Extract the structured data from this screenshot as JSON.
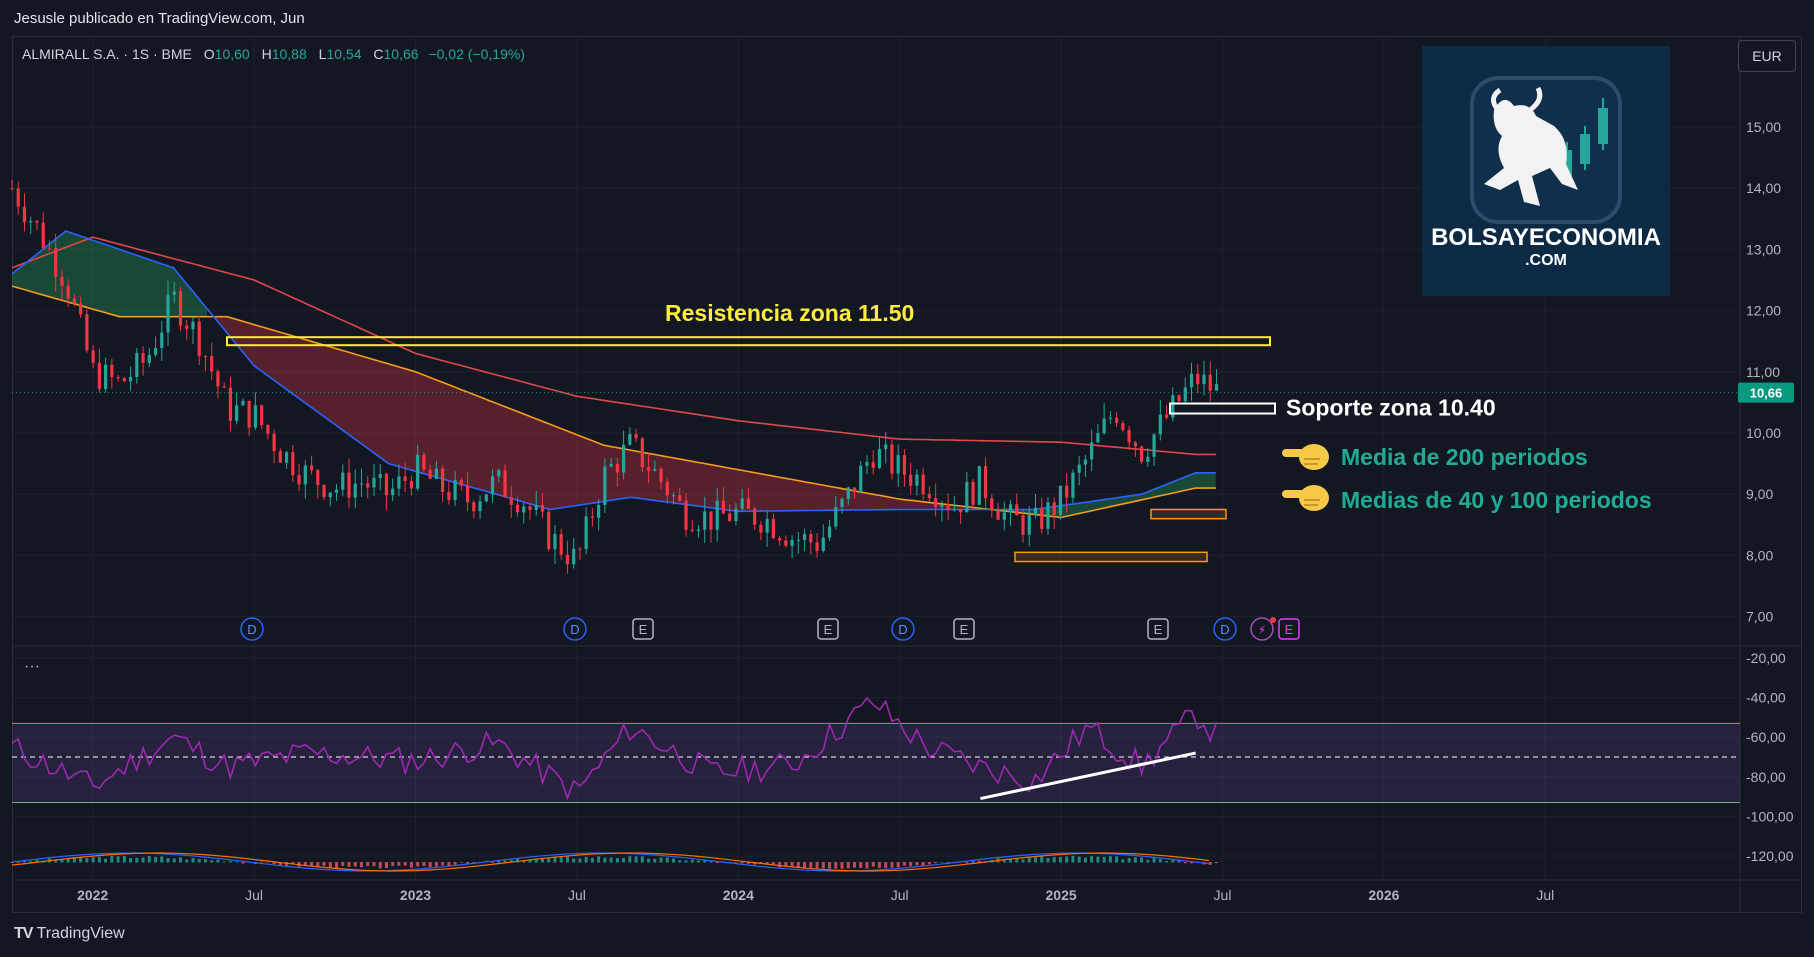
{
  "header": {
    "publisher": "Jesusle publicado en TradingView.com, Jun"
  },
  "legend": {
    "symbol": "ALMIRALL S.A. · 1S · BME",
    "open_label": "O",
    "open": "10,60",
    "high_label": "H",
    "high": "10,88",
    "low_label": "L",
    "low": "10,54",
    "close_label": "C",
    "close": "10,66",
    "change": "−0,02 (−0,19%)"
  },
  "currency": "EUR",
  "logo": {
    "name": "BOLSAYECONOMIA",
    "domain": ".COM"
  },
  "footer": {
    "brand": "TradingView"
  },
  "indicator_menu": "···",
  "annotations": {
    "resistance": "Resistencia zona 11.50",
    "support": "Soporte zona 10.40",
    "ma200": "Media de 200 periodos",
    "ma40_100": "Medias de 40 y 100 periodos",
    "pointer_icon": "pointing-hand-icon"
  },
  "colors": {
    "background": "#131722",
    "up": "#26a69a",
    "down": "#f23645",
    "ma200": "#e0474a",
    "ma40": "#2962ff",
    "ma100": "#f59d1b",
    "resistance": "#ffeb3b",
    "support": "#ffffff",
    "zones": "#ff9800",
    "rsi": "#9c27b0",
    "accent_text": "#22ab94",
    "price_badge": "#089981"
  },
  "chart_data": [
    {
      "type": "candlestick",
      "title": "ALMIRALL S.A. · 1S · BME",
      "y_unit": "EUR",
      "ylim": [
        6.5,
        16.0
      ],
      "y_ticks": [
        "15,00",
        "14,00",
        "13,00",
        "12,00",
        "11,00",
        "10,00",
        "9,00",
        "8,00",
        "7,00"
      ],
      "x_ticks": [
        "2022",
        "Jul",
        "2023",
        "Jul",
        "2024",
        "Jul",
        "2025",
        "Jul",
        "2026",
        "Jul"
      ],
      "last_price": "10,66",
      "price_path": [
        [
          "2021-10",
          14.0
        ],
        [
          "2021-11",
          13.3
        ],
        [
          "2021-12",
          12.5
        ],
        [
          "2022-01",
          11.0
        ],
        [
          "2022-02",
          10.8
        ],
        [
          "2022-03",
          11.2
        ],
        [
          "2022-04",
          12.2
        ],
        [
          "2022-05",
          11.5
        ],
        [
          "2022-06",
          10.4
        ],
        [
          "2022-07",
          10.3
        ],
        [
          "2022-08",
          9.7
        ],
        [
          "2022-09",
          9.3
        ],
        [
          "2022-10",
          9.1
        ],
        [
          "2022-11",
          9.2
        ],
        [
          "2022-12",
          9.0
        ],
        [
          "2023-01",
          9.4
        ],
        [
          "2023-02",
          9.1
        ],
        [
          "2023-03",
          8.9
        ],
        [
          "2023-04",
          9.2
        ],
        [
          "2023-05",
          8.9
        ],
        [
          "2023-06",
          8.3
        ],
        [
          "2023-07",
          7.9
        ],
        [
          "2023-08",
          9.3
        ],
        [
          "2023-09",
          9.8
        ],
        [
          "2023-10",
          9.3
        ],
        [
          "2023-11",
          8.7
        ],
        [
          "2023-12",
          8.6
        ],
        [
          "2024-01",
          8.7
        ],
        [
          "2024-02",
          8.6
        ],
        [
          "2024-03",
          8.3
        ],
        [
          "2024-04",
          8.2
        ],
        [
          "2024-05",
          8.9
        ],
        [
          "2024-06",
          9.7
        ],
        [
          "2024-07",
          9.4
        ],
        [
          "2024-08",
          9.2
        ],
        [
          "2024-09",
          8.8
        ],
        [
          "2024-10",
          9.2
        ],
        [
          "2024-11",
          8.6
        ],
        [
          "2024-12",
          8.5
        ],
        [
          "2025-01",
          8.9
        ],
        [
          "2025-02",
          9.6
        ],
        [
          "2025-03",
          10.4
        ],
        [
          "2025-04",
          9.7
        ],
        [
          "2025-05",
          10.3
        ],
        [
          "2025-06",
          10.9
        ],
        [
          "2025-06-27",
          10.66
        ]
      ],
      "overlays": [
        {
          "name": "Media de 200 periodos",
          "color": "#e0474a",
          "points": [
            [
              "2021-10",
              12.7
            ],
            [
              "2022-01",
              13.2
            ],
            [
              "2022-07",
              12.5
            ],
            [
              "2023-01",
              11.3
            ],
            [
              "2023-07",
              10.6
            ],
            [
              "2024-01",
              10.2
            ],
            [
              "2024-07",
              9.9
            ],
            [
              "2025-01",
              9.85
            ],
            [
              "2025-06",
              9.65
            ]
          ]
        },
        {
          "name": "Media de 40 periodos",
          "color": "#2962ff",
          "points": [
            [
              "2021-10",
              12.6
            ],
            [
              "2021-12",
              13.3
            ],
            [
              "2022-04",
              12.7
            ],
            [
              "2022-07",
              11.1
            ],
            [
              "2022-12",
              9.5
            ],
            [
              "2023-06",
              8.75
            ],
            [
              "2023-09",
              8.95
            ],
            [
              "2024-01",
              8.72
            ],
            [
              "2024-07",
              8.75
            ],
            [
              "2024-12",
              8.75
            ],
            [
              "2025-04",
              9.0
            ],
            [
              "2025-06",
              9.35
            ]
          ]
        },
        {
          "name": "Media de 100 periodos",
          "color": "#f59d1b",
          "points": [
            [
              "2021-10",
              12.4
            ],
            [
              "2022-02",
              11.9
            ],
            [
              "2022-06",
              11.9
            ],
            [
              "2023-01",
              11.0
            ],
            [
              "2023-08",
              9.8
            ],
            [
              "2024-01",
              9.4
            ],
            [
              "2024-07",
              8.92
            ],
            [
              "2025-01",
              8.62
            ],
            [
              "2025-06",
              9.1
            ]
          ]
        }
      ],
      "levels": [
        {
          "label": "Resistencia zona 11.50",
          "value": 11.5,
          "from": "2022-05",
          "to": "2025-06"
        },
        {
          "label": "Soporte zona 10.40",
          "value": 10.4,
          "from": "2025-03",
          "to": "2025-06"
        }
      ],
      "zones": [
        {
          "from": "2024-10",
          "to": "2025-01",
          "low": 7.9,
          "high": 8.05
        },
        {
          "from": "2025-03",
          "to": "2025-05",
          "low": 8.6,
          "high": 8.75
        }
      ],
      "events": [
        "D",
        "D",
        "E",
        "E",
        "D",
        "E",
        "E",
        "D",
        "⚡",
        "E"
      ]
    },
    {
      "type": "line",
      "title": "",
      "ylim": [
        -125,
        -15
      ],
      "y_ticks": [
        "-20,00",
        "-40,00",
        "-60,00",
        "-80,00",
        "-100,00",
        "-120,00"
      ],
      "band": [
        -53,
        -93
      ],
      "midline": -70,
      "trendline": {
        "from": [
          "2024-10",
          -91
        ],
        "to": [
          "2025-06",
          -68
        ]
      },
      "series_path": [
        [
          "2021-10",
          -65
        ],
        [
          "2022-01",
          -85
        ],
        [
          "2022-04",
          -60
        ],
        [
          "2022-06",
          -75
        ],
        [
          "2022-09",
          -68
        ],
        [
          "2023-01",
          -72
        ],
        [
          "2023-04",
          -63
        ],
        [
          "2023-07",
          -88
        ],
        [
          "2023-09",
          -55
        ],
        [
          "2023-12",
          -78
        ],
        [
          "2024-03",
          -74
        ],
        [
          "2024-06",
          -42
        ],
        [
          "2024-08",
          -65
        ],
        [
          "2024-10",
          -75
        ],
        [
          "2024-12",
          -82
        ],
        [
          "2025-02",
          -55
        ],
        [
          "2025-04",
          -75
        ],
        [
          "2025-06",
          -48
        ],
        [
          "2025-06-27",
          -60
        ]
      ]
    }
  ]
}
